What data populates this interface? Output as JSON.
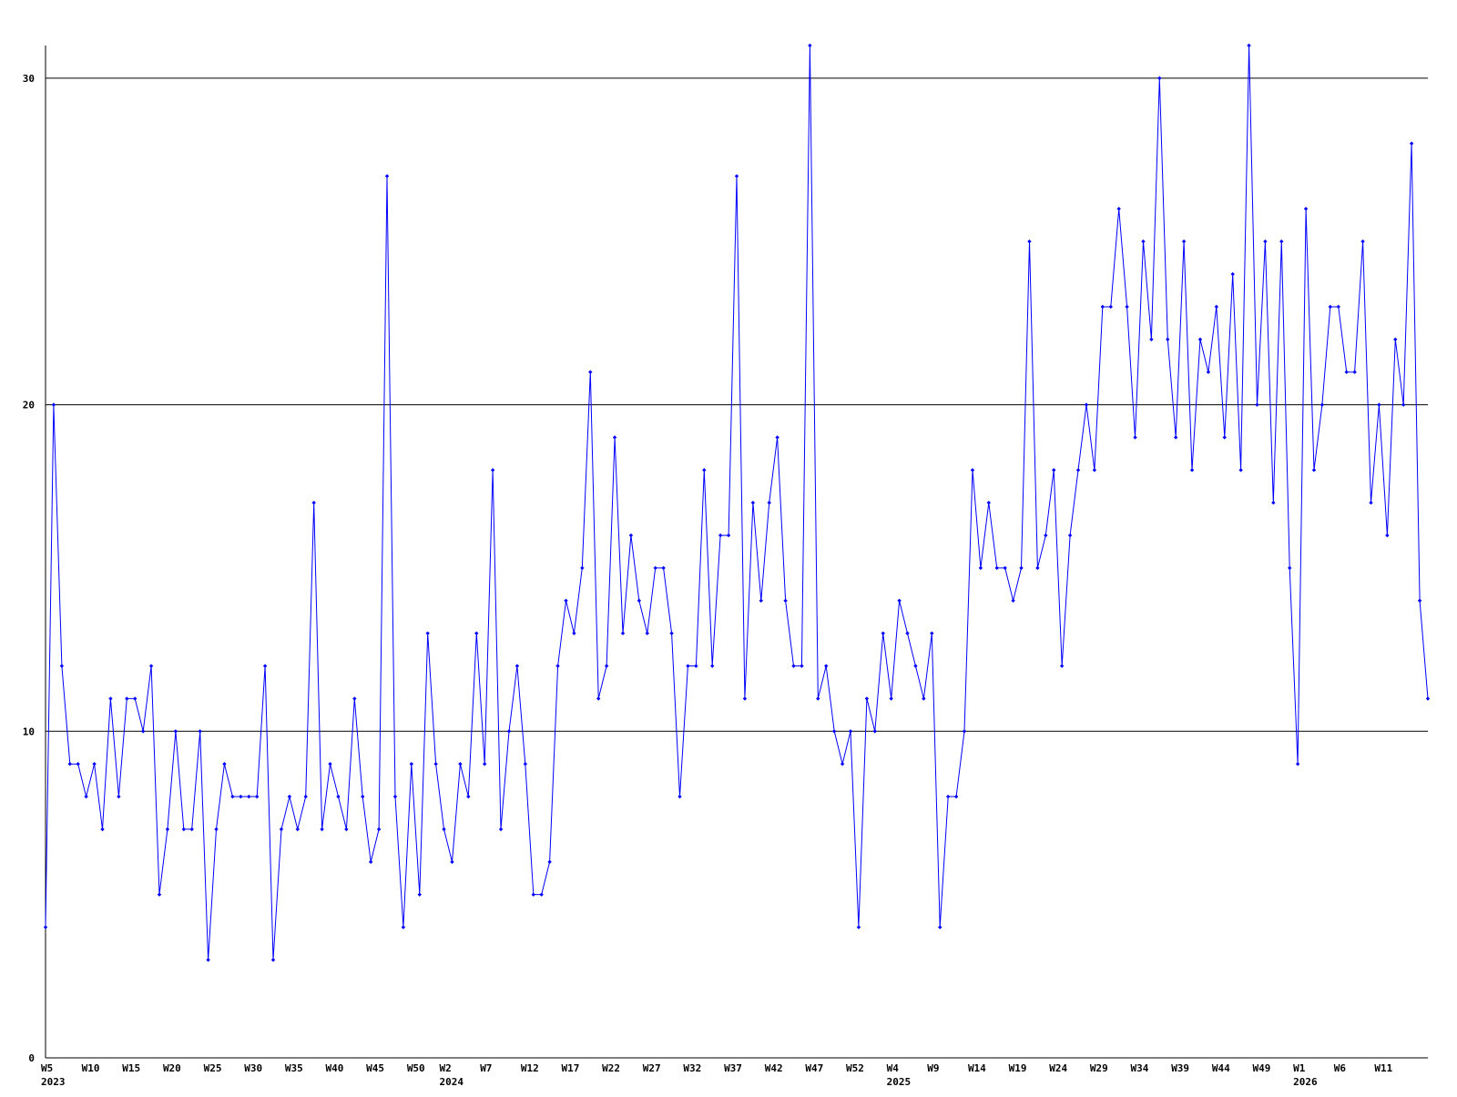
{
  "chart_data": {
    "type": "line",
    "title": "",
    "xlabel": "",
    "ylabel": "",
    "ylim": [
      0,
      31
    ],
    "yticks": [
      0,
      10,
      20,
      30
    ],
    "grid": true,
    "line_color": "#0000ff",
    "marker_color": "#0000ff",
    "axis_color": "#000000",
    "grid_color": "#000000",
    "x_ticks": [
      {
        "index": 0,
        "label": "W5",
        "year": "2023"
      },
      {
        "index": 5,
        "label": "W10"
      },
      {
        "index": 10,
        "label": "W15"
      },
      {
        "index": 15,
        "label": "W20"
      },
      {
        "index": 20,
        "label": "W25"
      },
      {
        "index": 25,
        "label": "W30"
      },
      {
        "index": 30,
        "label": "W35"
      },
      {
        "index": 35,
        "label": "W40"
      },
      {
        "index": 40,
        "label": "W45"
      },
      {
        "index": 45,
        "label": "W50"
      },
      {
        "index": 49,
        "label": "W2",
        "year": "2024"
      },
      {
        "index": 54,
        "label": "W7"
      },
      {
        "index": 59,
        "label": "W12"
      },
      {
        "index": 64,
        "label": "W17"
      },
      {
        "index": 69,
        "label": "W22"
      },
      {
        "index": 74,
        "label": "W27"
      },
      {
        "index": 79,
        "label": "W32"
      },
      {
        "index": 84,
        "label": "W37"
      },
      {
        "index": 89,
        "label": "W42"
      },
      {
        "index": 94,
        "label": "W47"
      },
      {
        "index": 99,
        "label": "W52"
      },
      {
        "index": 104,
        "label": "W4",
        "year": "2025"
      },
      {
        "index": 109,
        "label": "W9"
      },
      {
        "index": 114,
        "label": "W14"
      },
      {
        "index": 119,
        "label": "W19"
      },
      {
        "index": 124,
        "label": "W24"
      },
      {
        "index": 129,
        "label": "W29"
      },
      {
        "index": 134,
        "label": "W34"
      },
      {
        "index": 139,
        "label": "W39"
      },
      {
        "index": 144,
        "label": "W44"
      },
      {
        "index": 149,
        "label": "W49"
      },
      {
        "index": 154,
        "label": "W1",
        "year": "2026"
      },
      {
        "index": 159,
        "label": "W6"
      },
      {
        "index": 164,
        "label": "W11"
      }
    ],
    "series": [
      {
        "values": [
          4,
          20,
          12,
          9,
          9,
          8,
          9,
          7,
          11,
          8,
          11,
          11,
          10,
          12,
          5,
          7,
          10,
          7,
          7,
          10,
          3,
          7,
          9,
          8,
          8,
          8,
          8,
          12,
          3,
          7,
          8,
          7,
          8,
          17,
          7,
          9,
          8,
          7,
          11,
          8,
          6,
          7,
          27,
          8,
          4,
          9,
          5,
          13,
          9,
          7,
          6,
          9,
          8,
          13,
          9,
          18,
          7,
          10,
          12,
          9,
          5,
          5,
          6,
          12,
          14,
          13,
          15,
          21,
          11,
          12,
          19,
          13,
          16,
          14,
          13,
          15,
          15,
          13,
          8,
          12,
          12,
          18,
          12,
          16,
          16,
          27,
          11,
          17,
          14,
          17,
          19,
          14,
          12,
          12,
          31,
          11,
          12,
          10,
          9,
          10,
          4,
          11,
          10,
          13,
          11,
          14,
          13,
          12,
          11,
          13,
          4,
          8,
          8,
          10,
          18,
          15,
          17,
          15,
          15,
          14,
          15,
          25,
          15,
          16,
          18,
          12,
          16,
          18,
          20,
          18,
          23,
          23,
          26,
          23,
          19,
          25,
          22,
          30,
          22,
          19,
          25,
          18,
          22,
          21,
          23,
          19,
          24,
          18,
          31,
          20,
          25,
          17,
          25,
          15,
          9,
          26,
          18,
          20,
          23,
          23,
          21,
          21,
          25,
          17,
          20,
          16,
          22,
          20,
          28,
          14,
          11
        ]
      }
    ]
  }
}
